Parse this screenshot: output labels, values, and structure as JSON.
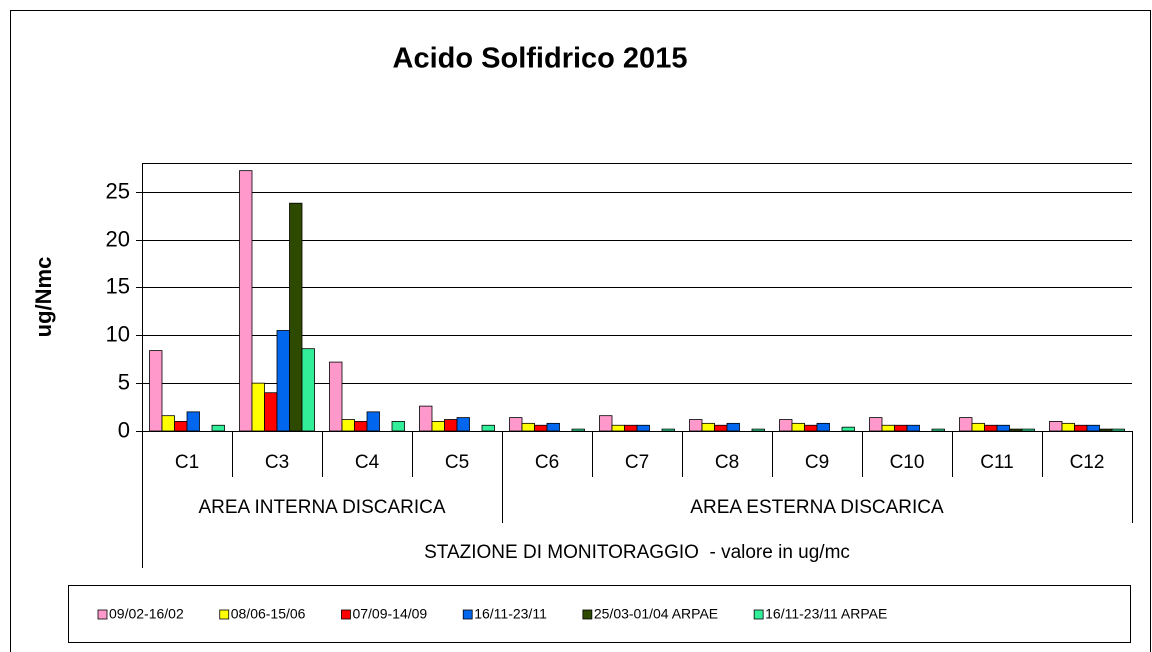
{
  "chart_data": {
    "type": "bar",
    "title": "Acido Solfidrico 2015",
    "y_label": "ug/Nmc",
    "x_label": "STAZIONE DI MONITORAGGIO  - valore in ug/mc",
    "categories": [
      "C1",
      "C3",
      "C4",
      "C5",
      "C6",
      "C7",
      "C8",
      "C9",
      "C10",
      "C11",
      "C12"
    ],
    "category_groups": [
      {
        "label": "AREA INTERNA DISCARICA",
        "size": 4
      },
      {
        "label": "AREA ESTERNA DISCARICA",
        "size": 7
      }
    ],
    "series": [
      {
        "name": "09/02-16/02",
        "color": "#ff99cc",
        "values": [
          8.4,
          27.2,
          7.2,
          2.6,
          1.4,
          1.6,
          1.2,
          1.2,
          1.4,
          1.4,
          1.0
        ]
      },
      {
        "name": "08/06-15/06",
        "color": "#ffff00",
        "values": [
          1.6,
          5.0,
          1.2,
          1.0,
          0.8,
          0.6,
          0.8,
          0.8,
          0.6,
          0.8,
          0.8
        ]
      },
      {
        "name": "07/09-14/09",
        "color": "#ff0000",
        "values": [
          1.0,
          4.0,
          1.0,
          1.2,
          0.6,
          0.6,
          0.6,
          0.6,
          0.6,
          0.6,
          0.6
        ]
      },
      {
        "name": "16/11-23/11",
        "color": "#0066ee",
        "values": [
          2.0,
          10.5,
          2.0,
          1.4,
          0.8,
          0.6,
          0.8,
          0.8,
          0.6,
          0.6,
          0.6
        ]
      },
      {
        "name": "25/03-01/04 ARPAE",
        "color": "#2e4a00",
        "values": [
          0,
          23.8,
          0,
          0,
          0,
          0,
          0,
          0,
          0,
          0.2,
          0.2
        ]
      },
      {
        "name": "16/11-23/11 ARPAE",
        "color": "#33ee99",
        "values": [
          0.6,
          8.6,
          1.0,
          0.6,
          0.2,
          0.2,
          0.2,
          0.4,
          0.2,
          0.2,
          0.2
        ]
      }
    ],
    "ylim": [
      0,
      28
    ],
    "yticks": [
      0,
      5,
      10,
      15,
      20,
      25
    ],
    "grid": true
  }
}
